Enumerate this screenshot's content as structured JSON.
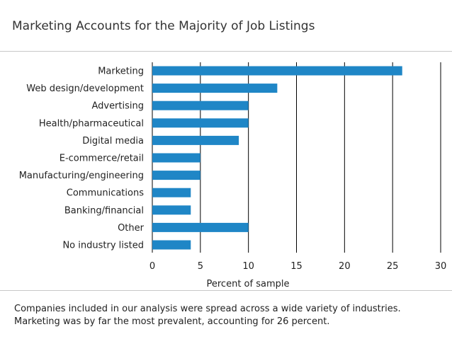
{
  "header": {
    "title": "Marketing Accounts for the Majority of Job Listings"
  },
  "caption": {
    "text": "Companies included in our analysis were spread across a wide variety of industries. Marketing was by far the most prevalent, accounting for 26 percent."
  },
  "colors": {
    "bar": "#1f86c6",
    "gridline": "#000000",
    "rule": "#c8c8c8"
  },
  "chart_data": {
    "type": "bar",
    "orientation": "horizontal",
    "title": "Marketing Accounts for the Majority of Job Listings",
    "xlabel": "Percent of sample",
    "ylabel": "",
    "categories": [
      "Marketing",
      "Web design/development",
      "Advertising",
      "Health/pharmaceutical",
      "Digital media",
      "E-commerce/retail",
      "Manufacturing/engineering",
      "Communications",
      "Banking/financial",
      "Other",
      "No industry listed"
    ],
    "values": [
      26,
      13,
      10,
      10,
      9,
      5,
      5,
      4,
      4,
      10,
      4
    ],
    "xlim": [
      0,
      30
    ],
    "xticks": [
      0,
      5,
      10,
      15,
      20,
      25,
      30
    ],
    "grid": true,
    "legend": "none"
  }
}
